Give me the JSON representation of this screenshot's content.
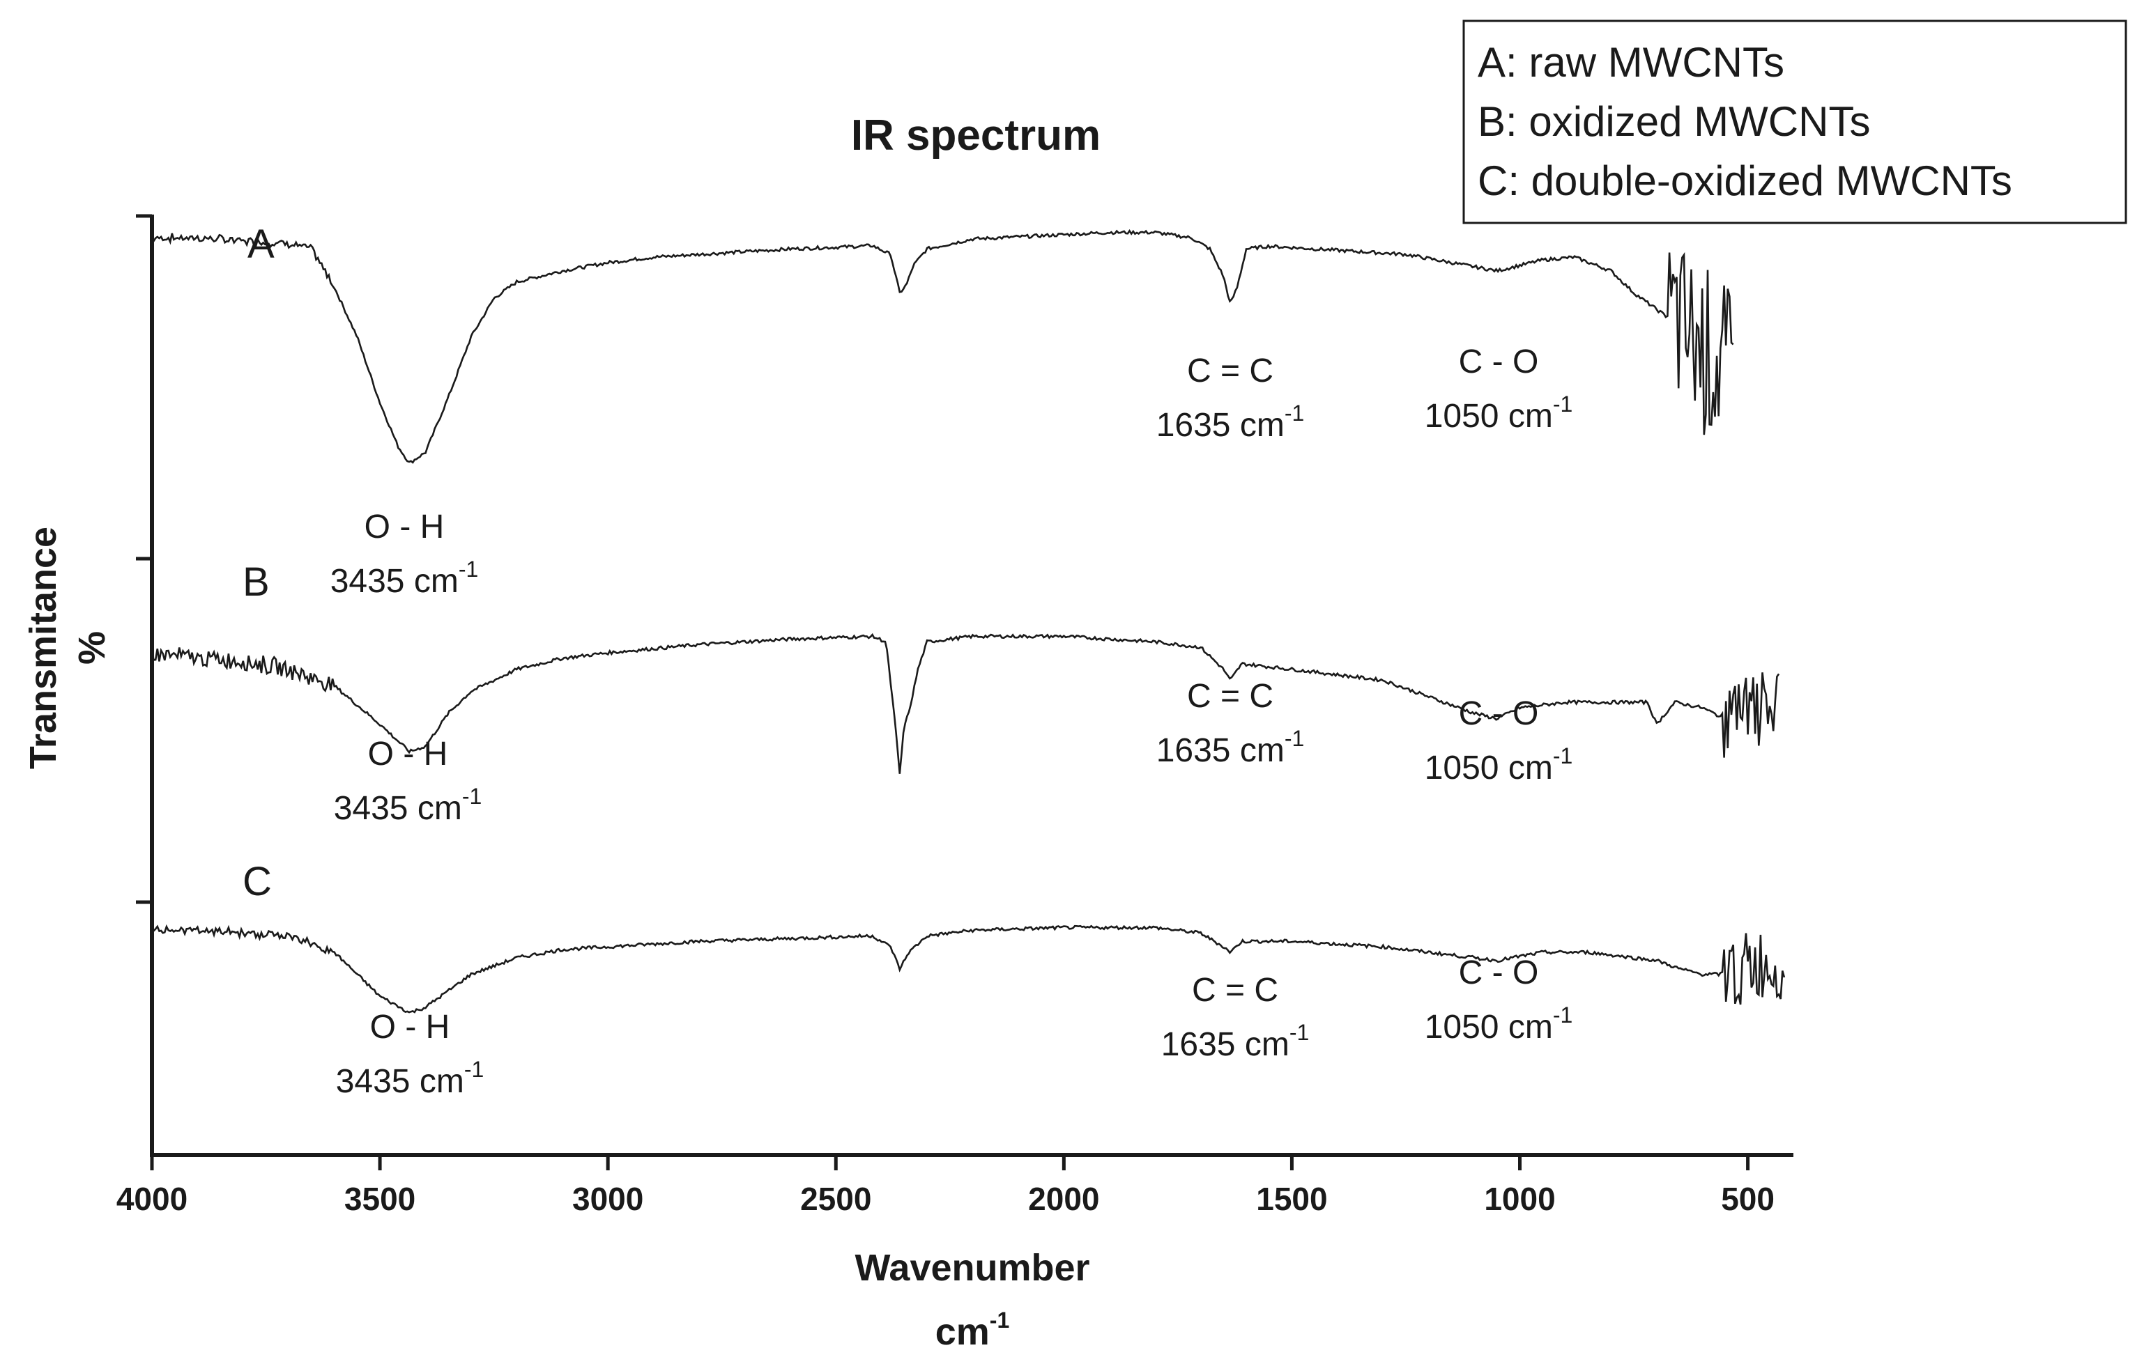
{
  "chart_data": {
    "type": "line",
    "title": "IR spectrum",
    "xlabel": "Wavenumber",
    "xlabel_unit": "cm",
    "xlabel_unit_sup": "-1",
    "ylabel": "Transmitance",
    "ylabel_unit": "%",
    "xlim": [
      4000,
      400
    ],
    "x_reversed": true,
    "x_ticks": [
      4000,
      3500,
      3000,
      2500,
      2000,
      1500,
      1000,
      500
    ],
    "y_ticks_labeled": false,
    "legend": {
      "position": "top-right",
      "entries": [
        "A: raw MWCNTs",
        "B: oxidized MWCNTs",
        "C: double-oxidized MWCNTs"
      ]
    },
    "series": [
      {
        "name": "A",
        "label": "A",
        "offset": 2,
        "points": [
          [
            4000,
            0.96
          ],
          [
            3900,
            0.96
          ],
          [
            3800,
            0.955
          ],
          [
            3700,
            0.95
          ],
          [
            3650,
            0.94
          ],
          [
            3600,
            0.87
          ],
          [
            3550,
            0.78
          ],
          [
            3500,
            0.66
          ],
          [
            3460,
            0.58
          ],
          [
            3435,
            0.55
          ],
          [
            3400,
            0.57
          ],
          [
            3350,
            0.67
          ],
          [
            3300,
            0.78
          ],
          [
            3250,
            0.85
          ],
          [
            3200,
            0.88
          ],
          [
            3100,
            0.9
          ],
          [
            3000,
            0.915
          ],
          [
            2900,
            0.925
          ],
          [
            2800,
            0.93
          ],
          [
            2700,
            0.935
          ],
          [
            2600,
            0.94
          ],
          [
            2500,
            0.943
          ],
          [
            2420,
            0.946
          ],
          [
            2380,
            0.93
          ],
          [
            2360,
            0.86
          ],
          [
            2345,
            0.875
          ],
          [
            2330,
            0.91
          ],
          [
            2300,
            0.94
          ],
          [
            2200,
            0.958
          ],
          [
            2100,
            0.962
          ],
          [
            2000,
            0.966
          ],
          [
            1900,
            0.97
          ],
          [
            1800,
            0.97
          ],
          [
            1720,
            0.96
          ],
          [
            1680,
            0.94
          ],
          [
            1650,
            0.89
          ],
          [
            1635,
            0.84
          ],
          [
            1620,
            0.87
          ],
          [
            1600,
            0.94
          ],
          [
            1550,
            0.945
          ],
          [
            1450,
            0.94
          ],
          [
            1350,
            0.935
          ],
          [
            1250,
            0.93
          ],
          [
            1150,
            0.915
          ],
          [
            1050,
            0.9
          ],
          [
            950,
            0.92
          ],
          [
            880,
            0.925
          ],
          [
            800,
            0.9
          ],
          [
            750,
            0.86
          ],
          [
            700,
            0.83
          ],
          [
            650,
            0.8
          ],
          [
            600,
            0.76
          ],
          [
            550,
            0.72
          ],
          [
            530,
            0.7
          ]
        ],
        "noisy_from": 680
      },
      {
        "name": "B",
        "label": "B",
        "offset": 1,
        "points": [
          [
            4000,
            0.83
          ],
          [
            3900,
            0.82
          ],
          [
            3800,
            0.815
          ],
          [
            3700,
            0.8
          ],
          [
            3600,
            0.77
          ],
          [
            3500,
            0.7
          ],
          [
            3435,
            0.65
          ],
          [
            3400,
            0.66
          ],
          [
            3350,
            0.72
          ],
          [
            3300,
            0.76
          ],
          [
            3200,
            0.8
          ],
          [
            3100,
            0.82
          ],
          [
            3000,
            0.83
          ],
          [
            2800,
            0.845
          ],
          [
            2600,
            0.855
          ],
          [
            2420,
            0.86
          ],
          [
            2390,
            0.85
          ],
          [
            2370,
            0.7
          ],
          [
            2360,
            0.61
          ],
          [
            2350,
            0.7
          ],
          [
            2340,
            0.72
          ],
          [
            2320,
            0.8
          ],
          [
            2300,
            0.85
          ],
          [
            2200,
            0.86
          ],
          [
            2000,
            0.86
          ],
          [
            1800,
            0.85
          ],
          [
            1700,
            0.84
          ],
          [
            1650,
            0.8
          ],
          [
            1635,
            0.78
          ],
          [
            1610,
            0.81
          ],
          [
            1500,
            0.8
          ],
          [
            1400,
            0.79
          ],
          [
            1300,
            0.78
          ],
          [
            1200,
            0.75
          ],
          [
            1100,
            0.72
          ],
          [
            1050,
            0.71
          ],
          [
            1000,
            0.73
          ],
          [
            900,
            0.74
          ],
          [
            800,
            0.74
          ],
          [
            720,
            0.74
          ],
          [
            700,
            0.7
          ],
          [
            660,
            0.74
          ],
          [
            600,
            0.73
          ],
          [
            550,
            0.71
          ],
          [
            500,
            0.72
          ],
          [
            430,
            0.73
          ]
        ],
        "noisy_from": 560
      },
      {
        "name": "C",
        "label": "C",
        "offset": 0,
        "points": [
          [
            4000,
            0.95
          ],
          [
            3900,
            0.95
          ],
          [
            3800,
            0.945
          ],
          [
            3700,
            0.94
          ],
          [
            3600,
            0.91
          ],
          [
            3500,
            0.83
          ],
          [
            3435,
            0.8
          ],
          [
            3400,
            0.81
          ],
          [
            3300,
            0.87
          ],
          [
            3200,
            0.9
          ],
          [
            3100,
            0.915
          ],
          [
            3000,
            0.92
          ],
          [
            2800,
            0.93
          ],
          [
            2600,
            0.935
          ],
          [
            2420,
            0.94
          ],
          [
            2380,
            0.92
          ],
          [
            2360,
            0.88
          ],
          [
            2340,
            0.91
          ],
          [
            2300,
            0.94
          ],
          [
            2200,
            0.95
          ],
          [
            2000,
            0.955
          ],
          [
            1800,
            0.955
          ],
          [
            1700,
            0.945
          ],
          [
            1650,
            0.92
          ],
          [
            1635,
            0.91
          ],
          [
            1610,
            0.93
          ],
          [
            1500,
            0.93
          ],
          [
            1400,
            0.925
          ],
          [
            1300,
            0.92
          ],
          [
            1200,
            0.91
          ],
          [
            1100,
            0.9
          ],
          [
            1050,
            0.895
          ],
          [
            950,
            0.91
          ],
          [
            850,
            0.91
          ],
          [
            750,
            0.9
          ],
          [
            700,
            0.895
          ],
          [
            650,
            0.88
          ],
          [
            600,
            0.87
          ],
          [
            550,
            0.87
          ],
          [
            500,
            0.88
          ],
          [
            420,
            0.89
          ]
        ],
        "noisy_from": 560
      }
    ],
    "annotations": [
      {
        "series": "A",
        "group": "O - H",
        "band": "3435 cm",
        "sup": "-1"
      },
      {
        "series": "A",
        "group": "C = C",
        "band": "1635 cm",
        "sup": "-1"
      },
      {
        "series": "A",
        "group": "C - O",
        "band": "1050 cm",
        "sup": "-1"
      },
      {
        "series": "B",
        "group": "O - H",
        "band": "3435 cm",
        "sup": "-1"
      },
      {
        "series": "B",
        "group": "C = C",
        "band": "1635 cm",
        "sup": "-1"
      },
      {
        "series": "B",
        "group": "C - O",
        "band": "1050 cm",
        "sup": "-1"
      },
      {
        "series": "C",
        "group": "O - H",
        "band": "3435 cm",
        "sup": "-1"
      },
      {
        "series": "C",
        "group": "C = C",
        "band": "1635 cm",
        "sup": "-1"
      },
      {
        "series": "C",
        "group": "C - O",
        "band": "1050 cm",
        "sup": "-1"
      }
    ]
  },
  "colors": {
    "line": "#1a1a1a",
    "axis": "#1a1a1a",
    "text": "#1a1a1a",
    "background": "#ffffff"
  }
}
